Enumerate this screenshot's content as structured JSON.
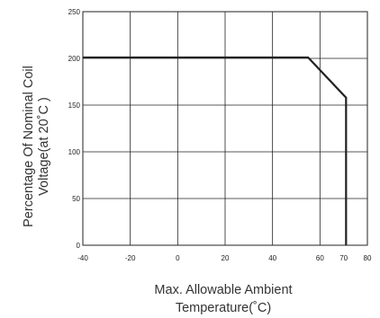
{
  "chart_data": {
    "type": "line",
    "xlabel": [
      "Max. Allowable Ambient",
      "Temperature(˚C)"
    ],
    "ylabel": [
      "Percentage Of Nominal Coil",
      "Voltage(at 20˚C )"
    ],
    "xlim": [
      -40,
      80
    ],
    "ylim": [
      0,
      250
    ],
    "grid": true,
    "x_ticks": [
      -40,
      -20,
      0,
      20,
      40,
      60,
      70,
      80
    ],
    "y_ticks": [
      0,
      50,
      100,
      150,
      200,
      250
    ],
    "series": [
      {
        "x": [
          -40,
          55,
          71,
          71
        ],
        "y": [
          201,
          201,
          158,
          0
        ],
        "color": "#222222"
      }
    ]
  }
}
